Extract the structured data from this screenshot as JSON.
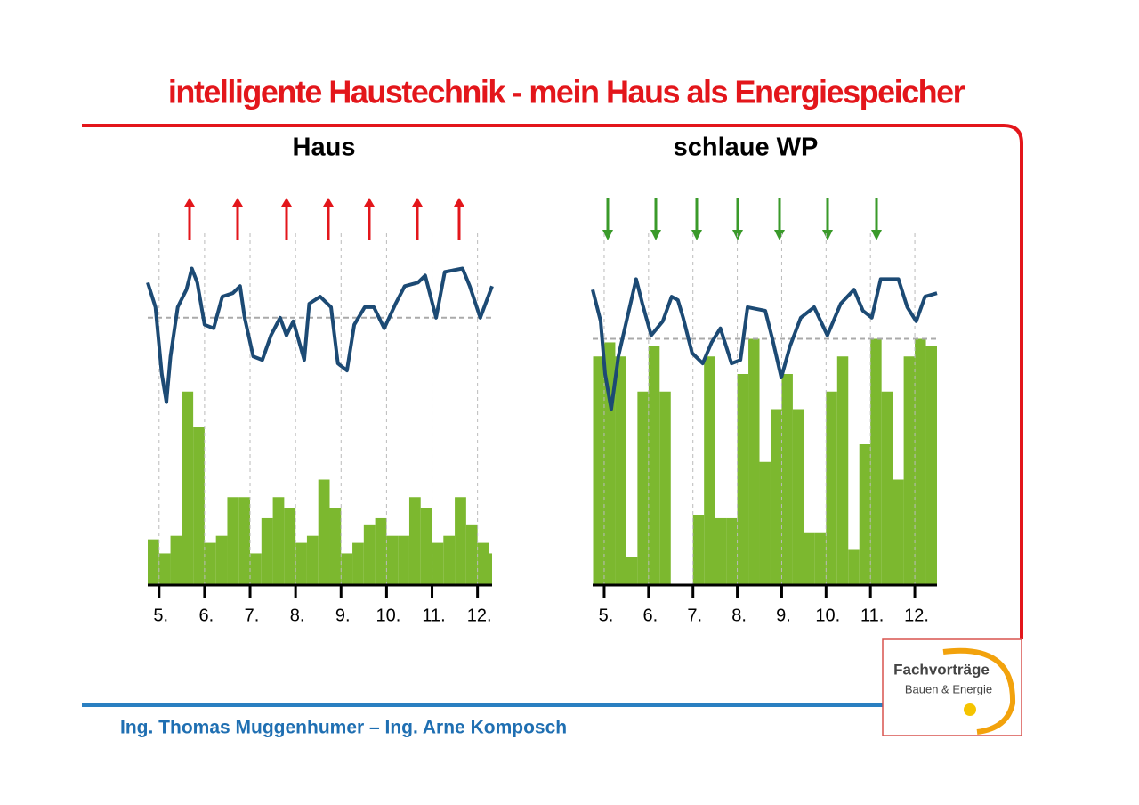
{
  "slide": {
    "title": "intelligente Haustechnik - mein Haus als Energiespeicher",
    "footer": "Ing. Thomas Muggenhumer – Ing. Arne Komposch",
    "logo": {
      "title": "Fachvorträge",
      "subtitle": "Bauen & Energie"
    }
  },
  "chart_data": [
    {
      "type": "combo",
      "title": "Haus",
      "xlim": [
        4.75,
        12.32
      ],
      "ylim": [
        0,
        100
      ],
      "grid": true,
      "reference_line": 76,
      "xticks": [
        {
          "value": 5,
          "label": "5."
        },
        {
          "value": 6,
          "label": "6."
        },
        {
          "value": 7,
          "label": "7."
        },
        {
          "value": 8,
          "label": "8."
        },
        {
          "value": 9,
          "label": "9."
        },
        {
          "value": 10,
          "label": "10."
        },
        {
          "value": 11,
          "label": "11."
        },
        {
          "value": 12,
          "label": "12."
        }
      ],
      "series": [
        {
          "type": "bar",
          "color": "#7cb82f",
          "x": [
            4.75,
            5,
            5.25,
            5.5,
            5.75,
            6,
            6.25,
            6.5,
            6.75,
            7,
            7.25,
            7.5,
            7.75,
            8,
            8.25,
            8.5,
            8.75,
            9,
            9.25,
            9.5,
            9.75,
            10,
            10.25,
            10.5,
            10.75,
            11,
            11.25,
            11.5,
            11.75,
            12,
            12.25
          ],
          "values": [
            13,
            9,
            14,
            55,
            45,
            12,
            14,
            25,
            25,
            9,
            19,
            25,
            22,
            12,
            14,
            30,
            22,
            9,
            12,
            17,
            19,
            14,
            14,
            25,
            22,
            12,
            14,
            25,
            17,
            12,
            9
          ]
        },
        {
          "type": "line",
          "color": "#1c4a74",
          "x": [
            4.75,
            4.92,
            5.06,
            5.16,
            5.25,
            5.41,
            5.6,
            5.72,
            5.84,
            6.0,
            6.2,
            6.39,
            6.62,
            6.78,
            6.88,
            7.07,
            7.27,
            7.46,
            7.66,
            7.8,
            7.95,
            8.19,
            8.3,
            8.54,
            8.78,
            8.93,
            9.13,
            9.29,
            9.52,
            9.72,
            9.95,
            10.2,
            10.4,
            10.69,
            10.85,
            11.09,
            11.28,
            11.67,
            11.83,
            12.06,
            12.32
          ],
          "values": [
            86,
            79,
            60,
            52,
            65,
            79,
            84,
            90,
            86,
            74,
            73,
            82,
            83,
            85,
            76,
            65,
            64,
            71,
            76,
            71,
            75,
            64,
            80,
            82,
            79,
            63,
            61,
            74,
            79,
            79,
            73,
            80,
            85,
            86,
            88,
            76,
            89,
            90,
            85,
            76,
            85
          ]
        }
      ]
    },
    {
      "type": "combo",
      "title": "schlaue WP",
      "xlim": [
        4.74,
        12.5
      ],
      "ylim": [
        0,
        100
      ],
      "grid": true,
      "reference_line": 70,
      "xticks": [
        {
          "value": 5,
          "label": "5."
        },
        {
          "value": 6,
          "label": "6."
        },
        {
          "value": 7,
          "label": "7."
        },
        {
          "value": 8,
          "label": "8."
        },
        {
          "value": 9,
          "label": "9."
        },
        {
          "value": 10,
          "label": "10."
        },
        {
          "value": 11,
          "label": "11."
        },
        {
          "value": 12,
          "label": "12."
        }
      ],
      "series": [
        {
          "type": "bar",
          "color": "#7cb82f",
          "x": [
            4.75,
            5,
            5.25,
            5.5,
            5.75,
            6,
            6.25,
            6.5,
            6.75,
            7,
            7.25,
            7.5,
            7.75,
            8,
            8.25,
            8.5,
            8.75,
            9,
            9.25,
            9.5,
            9.75,
            10,
            10.25,
            10.5,
            10.75,
            11,
            11.25,
            11.5,
            11.75,
            12,
            12.25
          ],
          "values": [
            65,
            69,
            65,
            8,
            55,
            68,
            55,
            0,
            0,
            20,
            65,
            19,
            19,
            60,
            70,
            35,
            50,
            60,
            50,
            15,
            15,
            55,
            65,
            10,
            40,
            70,
            55,
            30,
            65,
            70,
            68
          ]
        },
        {
          "type": "line",
          "color": "#1c4a74",
          "x": [
            4.74,
            4.92,
            5.02,
            5.16,
            5.32,
            5.52,
            5.72,
            5.86,
            6.06,
            6.32,
            6.52,
            6.66,
            6.78,
            6.98,
            7.22,
            7.42,
            7.62,
            7.87,
            8.07,
            8.23,
            8.63,
            8.79,
            8.99,
            9.19,
            9.43,
            9.73,
            10.03,
            10.33,
            10.63,
            10.83,
            11.03,
            11.23,
            11.63,
            11.83,
            12.03,
            12.23,
            12.5
          ],
          "values": [
            84,
            75,
            60,
            50,
            65,
            76,
            87,
            80,
            71,
            75,
            82,
            81,
            76,
            66,
            63,
            69,
            73,
            63,
            64,
            79,
            78,
            70,
            59,
            68,
            76,
            79,
            71,
            80,
            84,
            78,
            76,
            87,
            87,
            79,
            75,
            82,
            83
          ]
        }
      ]
    }
  ]
}
